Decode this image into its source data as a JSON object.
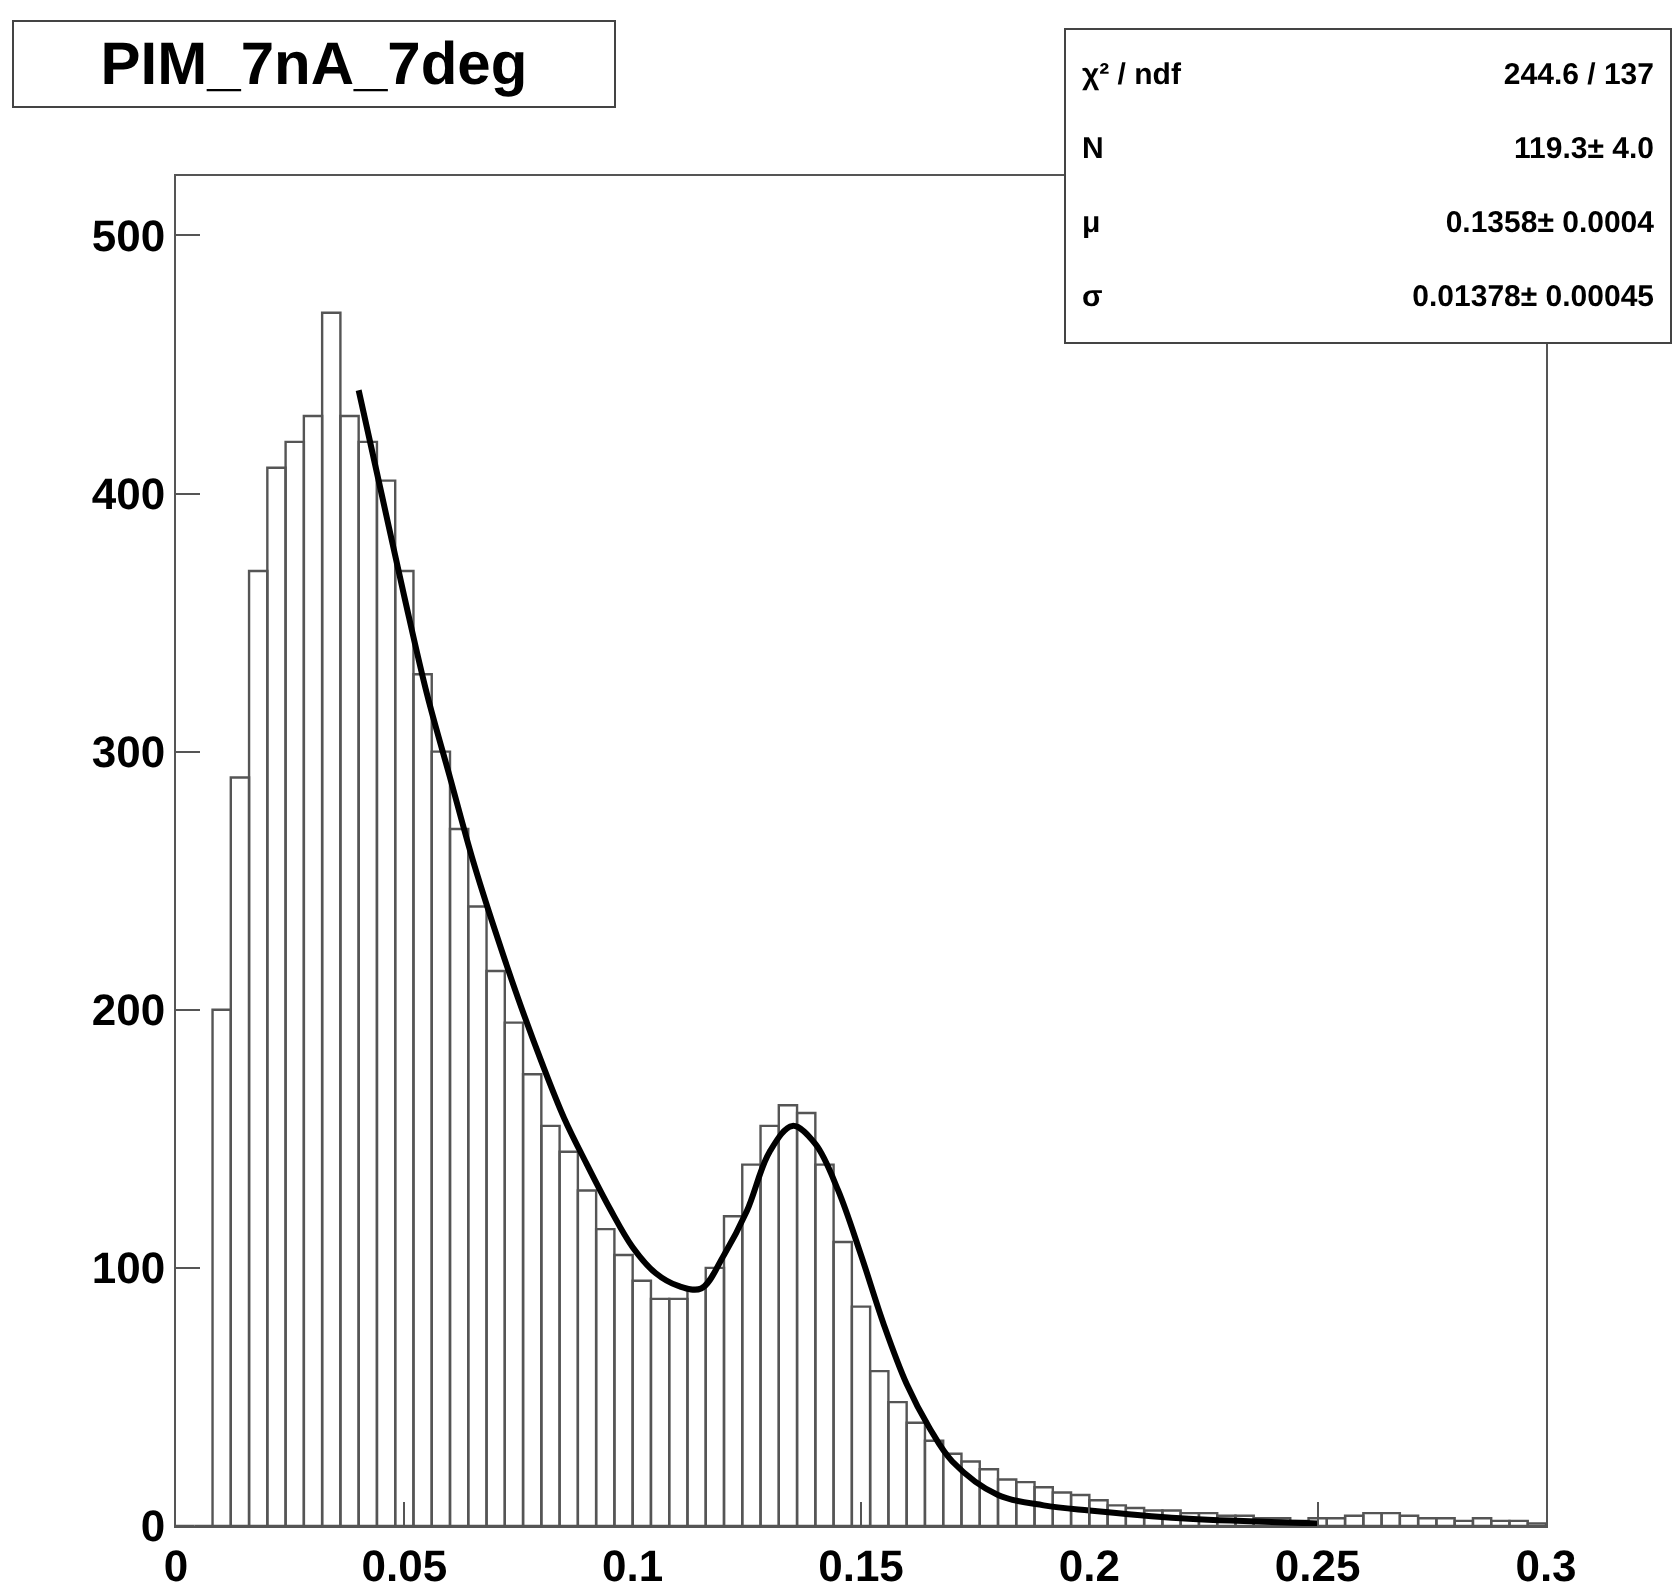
{
  "chart_data": {
    "type": "histogram",
    "title": "PIM_7nA_7deg",
    "annotations": [
      "χ² / ndf\t244.6 / 137",
      "N\t119.3± 4.0",
      "μ\t0.1358± 0.0004",
      "σ\t0.01378± 0.00045"
    ],
    "bins": [
      0,
      0.004,
      0.008,
      0.012,
      0.016,
      0.02,
      0.024,
      0.028,
      0.032,
      0.036,
      0.04,
      0.044,
      0.048,
      0.052,
      0.056,
      0.06,
      0.064,
      0.068,
      0.072,
      0.076,
      0.08,
      0.084,
      0.088,
      0.092,
      0.096,
      0.1,
      0.104,
      0.108,
      0.112,
      0.116,
      0.12,
      0.124,
      0.128,
      0.132,
      0.136,
      0.14,
      0.144,
      0.148,
      0.152,
      0.156,
      0.16,
      0.164,
      0.168,
      0.172,
      0.176,
      0.18,
      0.184,
      0.188,
      0.192,
      0.196,
      0.2,
      0.204,
      0.208,
      0.212,
      0.216,
      0.22,
      0.224,
      0.228,
      0.232,
      0.236,
      0.24,
      0.244,
      0.248,
      0.252,
      0.256,
      0.26,
      0.264,
      0.268,
      0.272,
      0.276,
      0.28,
      0.284,
      0.288,
      0.292,
      0.296,
      0.3
    ],
    "series": [
      {
        "color": "#555555",
        "values": [
          0,
          0,
          200,
          290,
          370,
          410,
          420,
          430,
          470,
          430,
          420,
          405,
          370,
          330,
          300,
          270,
          240,
          215,
          195,
          175,
          155,
          145,
          130,
          115,
          105,
          95,
          88,
          88,
          92,
          100,
          120,
          140,
          155,
          163,
          160,
          140,
          110,
          85,
          60,
          48,
          40,
          33,
          28,
          25,
          22,
          18,
          17,
          15,
          13,
          12,
          10,
          8,
          7,
          6,
          6,
          5,
          5,
          4,
          4,
          3,
          3,
          2,
          3,
          3,
          4,
          5,
          5,
          4,
          3,
          3,
          2,
          3,
          2,
          2,
          1
        ]
      },
      {
        "type": "line",
        "color": "#000000",
        "x": [
          0.04,
          0.045,
          0.05,
          0.055,
          0.06,
          0.065,
          0.07,
          0.075,
          0.08,
          0.085,
          0.09,
          0.095,
          0.1,
          0.105,
          0.11,
          0.115,
          0.12,
          0.125,
          0.13,
          0.135,
          0.14,
          0.145,
          0.15,
          0.155,
          0.16,
          0.165,
          0.17,
          0.18,
          0.19,
          0.2,
          0.22,
          0.25
        ],
        "values": [
          440,
          400,
          360,
          322,
          290,
          258,
          230,
          204,
          180,
          158,
          140,
          123,
          108,
          98,
          93,
          92,
          105,
          122,
          145,
          155,
          148,
          130,
          105,
          78,
          55,
          38,
          25,
          12,
          8,
          6,
          3,
          1
        ]
      }
    ],
    "xlim": [
      0,
      0.3
    ],
    "xticks": [
      0,
      0.05,
      0.1,
      0.15,
      0.2,
      0.25,
      0.3
    ],
    "ylim": [
      0,
      523
    ],
    "yticks": [
      0,
      100,
      200,
      300,
      400,
      500
    ],
    "grid": false,
    "legend": false
  }
}
